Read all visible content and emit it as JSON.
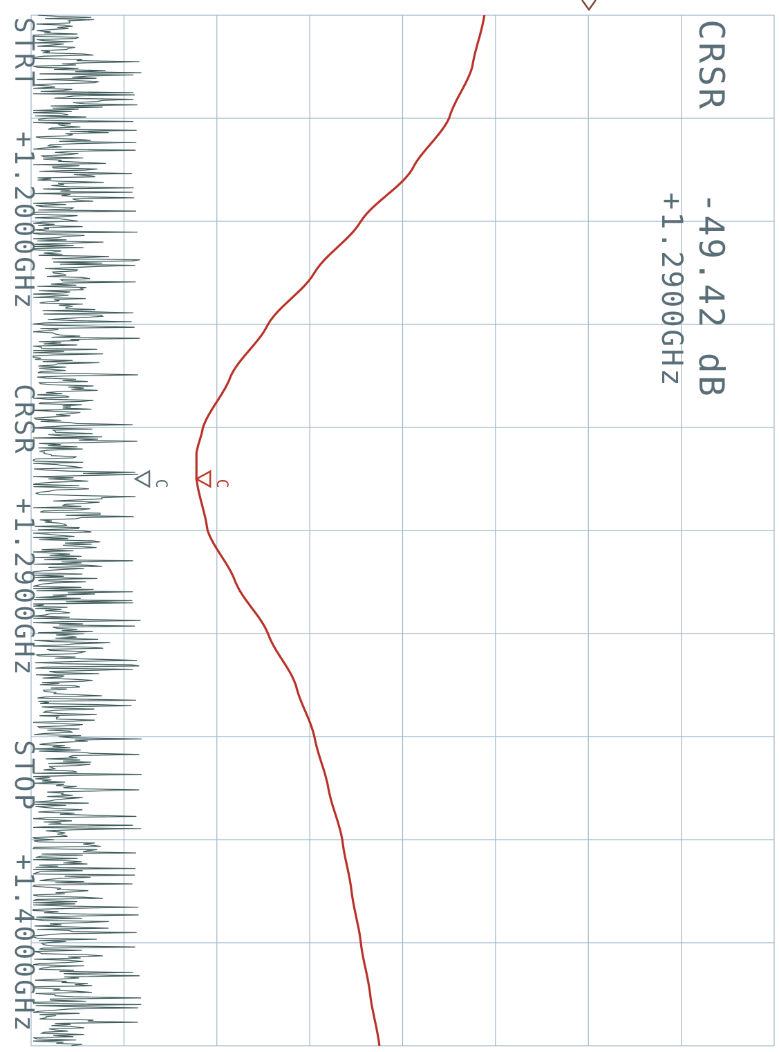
{
  "colors": {
    "grid": "#9eb6c9",
    "trace_red": "#b8322a",
    "trace_noise": "#3f5a5a",
    "text_main": "#5a6e78",
    "text_red": "#c0392b"
  },
  "readout": {
    "cursor_label": "CRSR",
    "cursor_value": "-49.42 dB",
    "cursor_freq": "+1.2900GHz"
  },
  "freq_axis": {
    "start_label": "STRT",
    "start_value": "+1.2000GHz",
    "cursor_label": "CRSR",
    "cursor_value": "+1.2900GHz",
    "stop_label": "STOP",
    "stop_value": "+1.4000GHz"
  },
  "markers": {
    "noise_marker_letter": "C",
    "red_marker_letter": "C",
    "red_marker_freq_ghz": 1.29,
    "noise_marker_freq_ghz": 1.29
  },
  "chart_data": {
    "type": "line",
    "x_unit": "GHz",
    "xlim": [
      1.2,
      1.4
    ],
    "grid": true,
    "grid_divisions_freq": 10,
    "grid_divisions_amp": 8,
    "orientation": "rotated 90 degrees clockwise; frequency runs top to bottom",
    "series": [
      {
        "color": "#b8322a",
        "x": [
          1.2,
          1.21,
          1.22,
          1.23,
          1.24,
          1.25,
          1.26,
          1.27,
          1.28,
          1.285,
          1.29,
          1.3,
          1.31,
          1.32,
          1.33,
          1.34,
          1.35,
          1.36,
          1.37,
          1.38,
          1.39,
          1.4
        ],
        "level_divisions": [
          4.88,
          4.75,
          4.5,
          4.1,
          3.55,
          3.05,
          2.55,
          2.15,
          1.85,
          1.78,
          1.78,
          1.9,
          2.2,
          2.55,
          2.85,
          3.05,
          3.2,
          3.35,
          3.45,
          3.55,
          3.65,
          3.75
        ]
      }
    ]
  }
}
